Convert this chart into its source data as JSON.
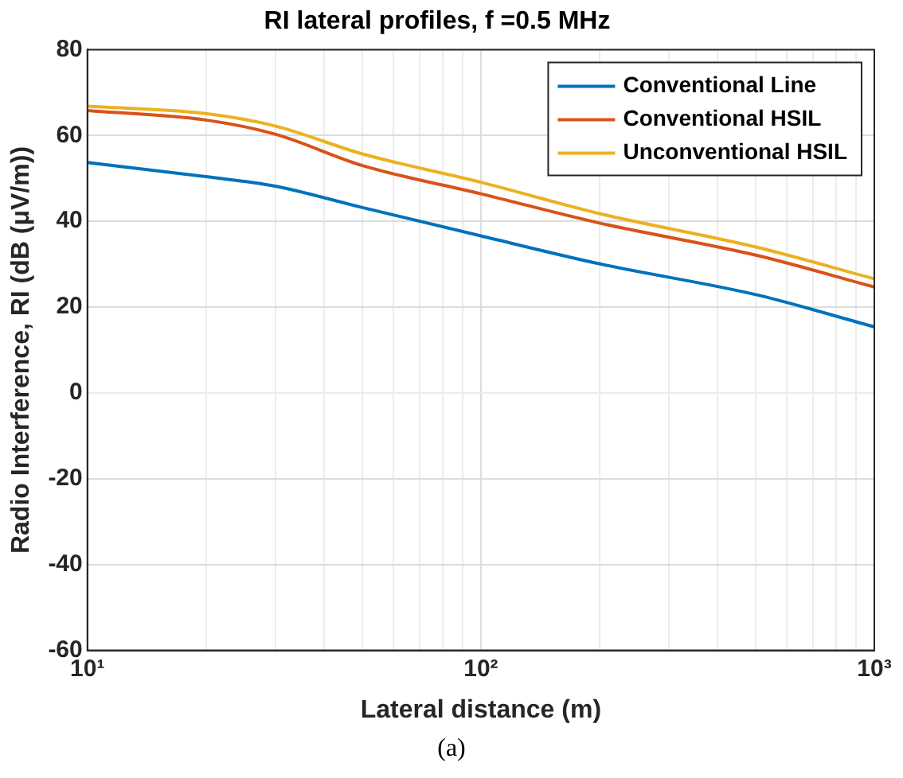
{
  "chart_data": {
    "type": "line",
    "title": "RI lateral profiles, f =0.5 MHz",
    "xlabel": "Lateral distance (m)",
    "ylabel": "Radio Interference, RI (dB (μV/m))",
    "annotations": [
      "(a)"
    ],
    "x": [
      10,
      20,
      30,
      50,
      100,
      200,
      500,
      1000
    ],
    "series": [
      {
        "name": "Conventional Line",
        "color": "#0072bd",
        "values": [
          53.7,
          50.4,
          48.2,
          43.2,
          36.6,
          30.1,
          22.9,
          15.4
        ]
      },
      {
        "name": "Conventional HSIL",
        "color": "#d95319",
        "values": [
          65.8,
          63.6,
          60.3,
          53.0,
          46.4,
          39.6,
          32.1,
          24.7
        ]
      },
      {
        "name": "Unconventional HSIL",
        "color": "#edb120",
        "values": [
          66.8,
          65.1,
          62.2,
          55.7,
          49.1,
          41.8,
          34.0,
          26.6
        ]
      }
    ],
    "log": "x",
    "xlim": [
      10,
      1000
    ],
    "xticks": [
      {
        "value": 10,
        "label": "10¹"
      },
      {
        "value": 20,
        "label": null
      },
      {
        "value": 30,
        "label": null
      },
      {
        "value": 40,
        "label": null
      },
      {
        "value": 50,
        "label": null
      },
      {
        "value": 60,
        "label": null
      },
      {
        "value": 70,
        "label": null
      },
      {
        "value": 80,
        "label": null
      },
      {
        "value": 90,
        "label": null
      },
      {
        "value": 100,
        "label": "10²"
      },
      {
        "value": 200,
        "label": null
      },
      {
        "value": 300,
        "label": null
      },
      {
        "value": 400,
        "label": null
      },
      {
        "value": 500,
        "label": null
      },
      {
        "value": 600,
        "label": null
      },
      {
        "value": 700,
        "label": null
      },
      {
        "value": 800,
        "label": null
      },
      {
        "value": 900,
        "label": null
      },
      {
        "value": 1000,
        "label": "10³"
      }
    ],
    "ylim": [
      -60,
      80
    ],
    "yticks": [
      -60,
      -40,
      -20,
      0,
      20,
      40,
      60,
      80
    ],
    "grid": true,
    "legend": "top right",
    "marker": "none",
    "line_style": "solid"
  }
}
